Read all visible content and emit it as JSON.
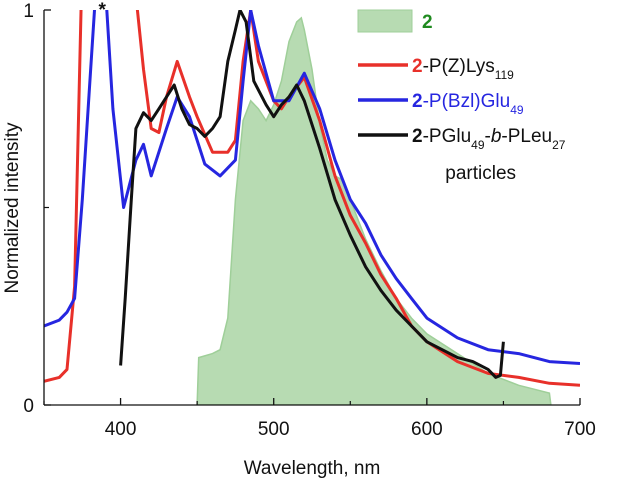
{
  "chart_data": {
    "type": "line",
    "xlabel": "Wavelength, nm",
    "ylabel": "Normalized intensity",
    "xlim": [
      350,
      700
    ],
    "ylim": [
      0,
      1
    ],
    "xticks": [
      400,
      500,
      600,
      700
    ],
    "xminorticks": [
      350,
      450,
      550,
      650
    ],
    "yticks": [
      0,
      1
    ],
    "yminorticks": [
      0.5
    ],
    "annotations": [
      {
        "text": "*",
        "x": 388,
        "y": 1
      }
    ],
    "series": [
      {
        "name": "2",
        "kind": "area",
        "color": "#b7dbb2",
        "label_color": "#1f8a1f",
        "x": [
          450,
          451,
          460,
          465,
          470,
          475,
          480,
          485,
          490,
          495,
          500,
          505,
          510,
          515,
          518,
          520,
          525,
          530,
          535,
          540,
          545,
          550,
          560,
          570,
          580,
          590,
          600,
          620,
          640,
          660,
          670,
          680,
          681
        ],
        "values": [
          0,
          0.12,
          0.13,
          0.14,
          0.22,
          0.52,
          0.72,
          0.77,
          0.75,
          0.72,
          0.76,
          0.82,
          0.92,
          0.97,
          0.98,
          0.95,
          0.85,
          0.71,
          0.62,
          0.58,
          0.57,
          0.52,
          0.42,
          0.34,
          0.27,
          0.22,
          0.18,
          0.13,
          0.08,
          0.05,
          0.04,
          0.03,
          0
        ]
      },
      {
        "name": "2-P(Z)Lys119",
        "kind": "line",
        "color": "#e8302a",
        "label_color": "#111111",
        "x": [
          350,
          360,
          365,
          370,
          373,
          376,
          405,
          411,
          415,
          420,
          425,
          430,
          437,
          445,
          450,
          460,
          470,
          475,
          480,
          485,
          490,
          500,
          505,
          510,
          520,
          530,
          540,
          550,
          560,
          570,
          580,
          590,
          600,
          620,
          640,
          660,
          680,
          700
        ],
        "values": [
          0.06,
          0.07,
          0.09,
          0.3,
          0.8,
          1.3,
          1.3,
          1.0,
          0.85,
          0.7,
          0.69,
          0.78,
          0.87,
          0.78,
          0.73,
          0.64,
          0.64,
          0.67,
          0.87,
          1.0,
          0.87,
          0.77,
          0.75,
          0.78,
          0.83,
          0.72,
          0.58,
          0.48,
          0.41,
          0.33,
          0.27,
          0.2,
          0.16,
          0.11,
          0.08,
          0.07,
          0.055,
          0.05
        ]
      },
      {
        "name": "2-P(Bzl)Glu49",
        "kind": "line",
        "color": "#2626e0",
        "label_color": "#2626e0",
        "x": [
          350,
          360,
          365,
          370,
          375,
          380,
          383,
          386,
          391,
          395,
          402,
          410,
          415,
          420,
          430,
          437,
          445,
          455,
          465,
          475,
          480,
          485,
          490,
          500,
          510,
          520,
          530,
          540,
          550,
          560,
          570,
          580,
          590,
          600,
          620,
          640,
          660,
          680,
          700
        ],
        "values": [
          0.2,
          0.215,
          0.235,
          0.27,
          0.52,
          0.82,
          1.0,
          1.3,
          1.0,
          0.75,
          0.5,
          0.62,
          0.66,
          0.58,
          0.7,
          0.78,
          0.73,
          0.61,
          0.58,
          0.62,
          0.82,
          1.0,
          0.91,
          0.77,
          0.77,
          0.84,
          0.75,
          0.62,
          0.52,
          0.46,
          0.38,
          0.32,
          0.27,
          0.22,
          0.17,
          0.14,
          0.13,
          0.11,
          0.105
        ]
      },
      {
        "name": "2-PGlu49-b-PLeu27 particles",
        "kind": "line",
        "color": "#111111",
        "label_color": "#111111",
        "x": [
          400,
          403,
          407,
          410,
          415,
          420,
          425,
          430,
          435,
          440,
          445,
          450,
          455,
          460,
          465,
          470,
          475,
          478,
          482,
          487,
          495,
          500,
          505,
          510,
          515,
          520,
          530,
          540,
          550,
          560,
          570,
          580,
          590,
          600,
          610,
          620,
          630,
          640,
          645,
          648,
          650
        ],
        "values": [
          0.1,
          0.27,
          0.52,
          0.7,
          0.74,
          0.72,
          0.75,
          0.78,
          0.81,
          0.75,
          0.71,
          0.7,
          0.68,
          0.7,
          0.73,
          0.87,
          0.95,
          1.0,
          0.97,
          0.82,
          0.76,
          0.73,
          0.76,
          0.78,
          0.81,
          0.77,
          0.65,
          0.52,
          0.43,
          0.35,
          0.29,
          0.24,
          0.2,
          0.16,
          0.14,
          0.12,
          0.11,
          0.09,
          0.07,
          0.075,
          0.16
        ]
      }
    ]
  }
}
